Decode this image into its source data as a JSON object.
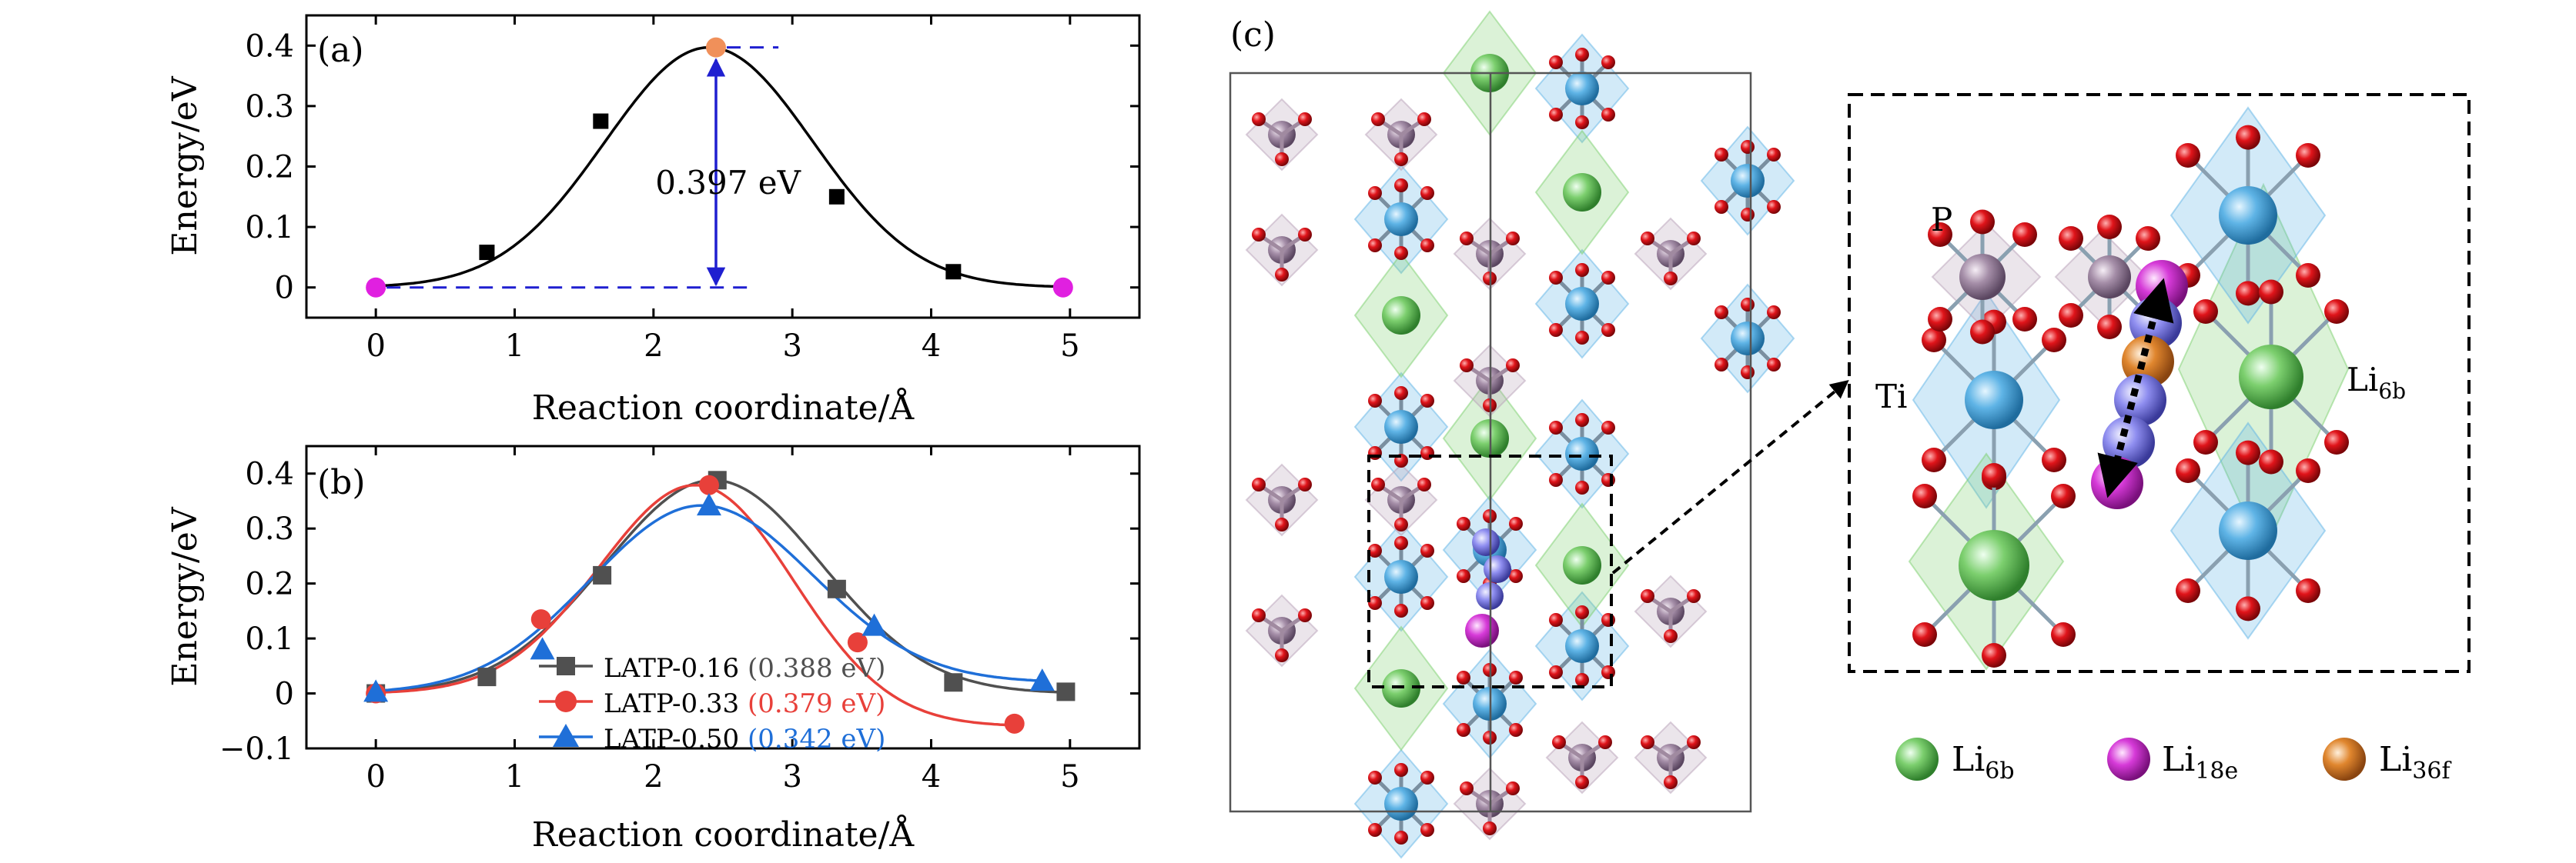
{
  "panel_labels": {
    "a": "(a)",
    "b": "(b)",
    "c": "(c)"
  },
  "colors": {
    "axis": "#000000",
    "curve_a": "#000000",
    "endpoint": "#e020e0",
    "saddle": "#f0905a",
    "arrow": "#1f1fd0",
    "s016": "#505050",
    "s033": "#e8403a",
    "s050": "#1f6fd8",
    "Li6b": "#7ccf6e",
    "Li18e": "#d63ad8",
    "Li36f": "#e0862e",
    "Ti": "#5fb4e6",
    "P": "#b8a0b8",
    "O": "#e0141a",
    "path_ball": "#8f8ef0"
  },
  "chart_data": [
    {
      "id": "a",
      "type": "line",
      "xlabel": "Reaction coordinate/Å",
      "ylabel": "Energy/eV",
      "xlim": [
        -0.5,
        5.5
      ],
      "ylim": [
        -0.05,
        0.45
      ],
      "xticks": [
        0,
        1,
        2,
        3,
        4,
        5
      ],
      "yticks": [
        0,
        0.1,
        0.2,
        0.3,
        0.4
      ],
      "ytick_labels": [
        "0",
        "0.1",
        "0.2",
        "0.3",
        "0.4"
      ],
      "curve": {
        "mu": 2.4,
        "sigma": 0.75,
        "amp": 0.397
      },
      "points": [
        {
          "x": 0,
          "y": 0,
          "kind": "endpoint"
        },
        {
          "x": 0.8,
          "y": 0.058,
          "kind": "square"
        },
        {
          "x": 1.62,
          "y": 0.275,
          "kind": "square"
        },
        {
          "x": 2.45,
          "y": 0.397,
          "kind": "saddle"
        },
        {
          "x": 3.32,
          "y": 0.15,
          "kind": "square"
        },
        {
          "x": 4.16,
          "y": 0.026,
          "kind": "square"
        },
        {
          "x": 4.95,
          "y": 0,
          "kind": "endpoint"
        }
      ],
      "annotation": "0.397 eV"
    },
    {
      "id": "b",
      "type": "line",
      "xlabel": "Reaction coordinate/Å",
      "ylabel": "Energy/eV",
      "xlim": [
        -0.5,
        5.5
      ],
      "ylim": [
        -0.1,
        0.45
      ],
      "xticks": [
        0,
        1,
        2,
        3,
        4,
        5
      ],
      "yticks": [
        -0.1,
        0,
        0.1,
        0.2,
        0.3,
        0.4
      ],
      "ytick_labels": [
        "−0.1",
        "0",
        "0.1",
        "0.2",
        "0.3",
        "0.4"
      ],
      "series": [
        {
          "name": "LATP-0.16",
          "barrier": "(0.388 eV)",
          "marker": "square",
          "color_key": "s016",
          "points": [
            [
              0,
              0
            ],
            [
              0.8,
              0.03
            ],
            [
              1.63,
              0.215
            ],
            [
              2.46,
              0.388
            ],
            [
              3.32,
              0.19
            ],
            [
              4.16,
              0.02
            ],
            [
              4.97,
              0.003
            ]
          ],
          "curve": {
            "mu": 2.43,
            "sigma": 0.78,
            "amp": 0.388,
            "base_end": 0.0
          }
        },
        {
          "name": "LATP-0.33",
          "barrier": "(0.379 eV)",
          "marker": "circle",
          "color_key": "s033",
          "points": [
            [
              0,
              0
            ],
            [
              1.19,
              0.135
            ],
            [
              2.4,
              0.379
            ],
            [
              3.47,
              0.093
            ],
            [
              4.6,
              -0.055
            ]
          ],
          "curve": {
            "mu": 2.3,
            "sigma": 0.7,
            "amp": 0.379,
            "base_end": -0.06
          }
        },
        {
          "name": "LATP-0.50",
          "barrier": "(0.342 eV)",
          "marker": "triangle",
          "color_key": "s050",
          "points": [
            [
              0,
              0.003
            ],
            [
              1.2,
              0.08
            ],
            [
              2.4,
              0.342
            ],
            [
              3.59,
              0.123
            ],
            [
              4.8,
              0.023
            ]
          ],
          "curve": {
            "mu": 2.35,
            "sigma": 0.8,
            "amp": 0.342,
            "base_end": 0.02
          }
        }
      ]
    }
  ],
  "structure_c": {
    "labels": {
      "P": "P",
      "Ti": "Ti",
      "Li6b_main": "Li",
      "Li6b_sub": "6b"
    },
    "legend": [
      {
        "main": "Li",
        "sub": "6b",
        "color_key": "Li6b"
      },
      {
        "main": "Li",
        "sub": "18e",
        "color_key": "Li18e"
      },
      {
        "main": "Li",
        "sub": "36f",
        "color_key": "Li36f"
      }
    ]
  }
}
